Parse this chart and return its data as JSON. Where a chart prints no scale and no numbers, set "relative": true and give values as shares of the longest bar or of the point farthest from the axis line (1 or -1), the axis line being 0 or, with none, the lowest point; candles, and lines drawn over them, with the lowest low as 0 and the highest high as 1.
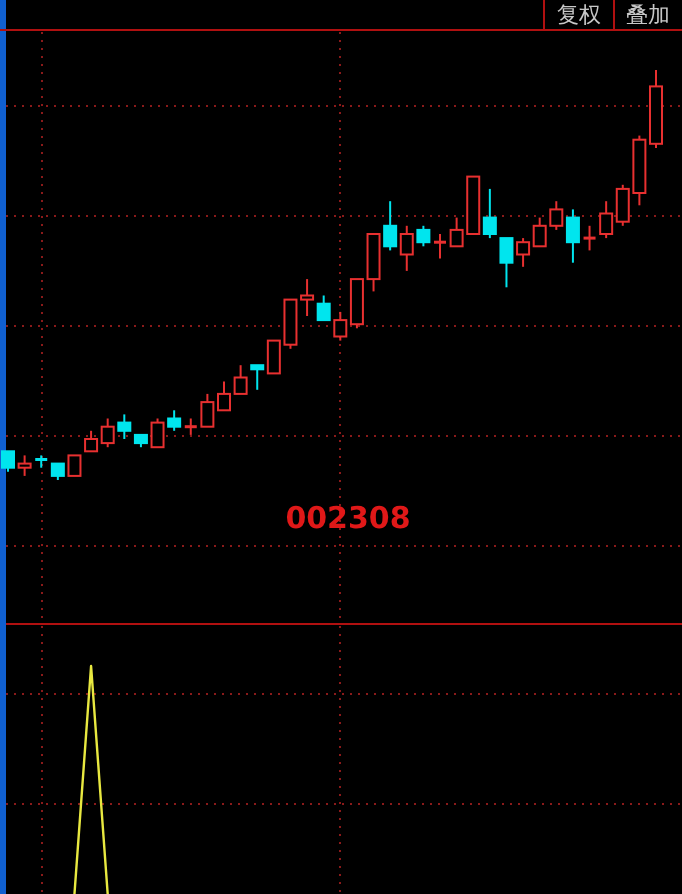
{
  "chart_data": [
    {
      "type": "candlestick",
      "relative": true,
      "grid": true,
      "annotations": [
        "复权",
        "叠加",
        "002308"
      ],
      "categories": [
        null,
        null,
        null,
        null,
        null,
        null,
        null,
        null,
        null,
        null,
        null,
        null,
        null,
        null,
        null,
        null,
        null,
        null,
        null,
        null,
        null,
        null,
        null,
        null,
        null,
        null,
        null,
        null,
        null,
        null,
        null,
        null,
        null,
        null,
        null,
        null,
        null,
        null,
        null,
        null
      ],
      "ohlc": [
        [
          0.07,
          0.07,
          0.02,
          0.03
        ],
        [
          0.03,
          0.06,
          0.01,
          0.04
        ],
        [
          0.05,
          0.06,
          0.03,
          0.05
        ],
        [
          0.04,
          0.04,
          0.0,
          0.01
        ],
        [
          0.01,
          0.06,
          0.01,
          0.06
        ],
        [
          0.07,
          0.12,
          0.07,
          0.1
        ],
        [
          0.09,
          0.15,
          0.08,
          0.13
        ],
        [
          0.14,
          0.16,
          0.1,
          0.12
        ],
        [
          0.11,
          0.11,
          0.08,
          0.09
        ],
        [
          0.08,
          0.15,
          0.08,
          0.14
        ],
        [
          0.15,
          0.17,
          0.12,
          0.13
        ],
        [
          0.13,
          0.15,
          0.11,
          0.13
        ],
        [
          0.13,
          0.21,
          0.13,
          0.19
        ],
        [
          0.17,
          0.24,
          0.17,
          0.21
        ],
        [
          0.21,
          0.28,
          0.21,
          0.25
        ],
        [
          0.28,
          0.28,
          0.22,
          0.27
        ],
        [
          0.26,
          0.34,
          0.26,
          0.34
        ],
        [
          0.33,
          0.44,
          0.32,
          0.44
        ],
        [
          0.44,
          0.49,
          0.4,
          0.45
        ],
        [
          0.43,
          0.45,
          0.39,
          0.39
        ],
        [
          0.35,
          0.41,
          0.34,
          0.39
        ],
        [
          0.38,
          0.49,
          0.37,
          0.49
        ],
        [
          0.49,
          0.6,
          0.46,
          0.6
        ],
        [
          0.62,
          0.68,
          0.56,
          0.57
        ],
        [
          0.55,
          0.62,
          0.51,
          0.6
        ],
        [
          0.61,
          0.62,
          0.57,
          0.58
        ],
        [
          0.58,
          0.6,
          0.54,
          0.58
        ],
        [
          0.57,
          0.64,
          0.57,
          0.61
        ],
        [
          0.6,
          0.74,
          0.6,
          0.74
        ],
        [
          0.64,
          0.71,
          0.59,
          0.6
        ],
        [
          0.59,
          0.59,
          0.47,
          0.53
        ],
        [
          0.55,
          0.59,
          0.52,
          0.58
        ],
        [
          0.57,
          0.64,
          0.57,
          0.62
        ],
        [
          0.62,
          0.68,
          0.61,
          0.66
        ],
        [
          0.64,
          0.66,
          0.53,
          0.58
        ],
        [
          0.59,
          0.62,
          0.56,
          0.59
        ],
        [
          0.6,
          0.68,
          0.59,
          0.65
        ],
        [
          0.63,
          0.72,
          0.62,
          0.71
        ],
        [
          0.7,
          0.84,
          0.67,
          0.83
        ],
        [
          0.82,
          1.0,
          0.81,
          0.96
        ]
      ],
      "colors": [
        "#00e5ee",
        "#e83030",
        "#00e5ee",
        "#00e5ee",
        "#e83030",
        "#e83030",
        "#e83030",
        "#00e5ee",
        "#00e5ee",
        "#e83030",
        "#00e5ee",
        "#e83030",
        "#e83030",
        "#e83030",
        "#e83030",
        "#00e5ee",
        "#e83030",
        "#e83030",
        "#e83030",
        "#00e5ee",
        "#e83030",
        "#e83030",
        "#e83030",
        "#00e5ee",
        "#e83030",
        "#00e5ee",
        "#e83030",
        "#e83030",
        "#e83030",
        "#00e5ee",
        "#00e5ee",
        "#e83030",
        "#e83030",
        "#e83030",
        "#00e5ee",
        "#e83030",
        "#e83030",
        "#e83030",
        "#e83030",
        "#e83030"
      ]
    },
    {
      "type": "line",
      "relative": true,
      "grid": true,
      "color": "#e8e840",
      "categories": [
        null,
        null,
        null,
        null,
        null,
        null,
        null,
        null,
        null,
        null,
        null,
        null,
        null,
        null,
        null,
        null,
        null,
        null,
        null,
        null,
        null,
        null,
        null,
        null,
        null,
        null,
        null,
        null,
        null,
        null,
        null,
        null,
        null,
        null,
        null,
        null,
        null,
        null,
        null,
        null
      ],
      "values": [
        null,
        null,
        null,
        null,
        0,
        1,
        0,
        null,
        null,
        null,
        null,
        null,
        null,
        null,
        null,
        null,
        null,
        null,
        null,
        null,
        null,
        null,
        null,
        null,
        null,
        null,
        null,
        null,
        null,
        null,
        null,
        null,
        null,
        null,
        null,
        null,
        null,
        null,
        null,
        null
      ]
    }
  ]
}
